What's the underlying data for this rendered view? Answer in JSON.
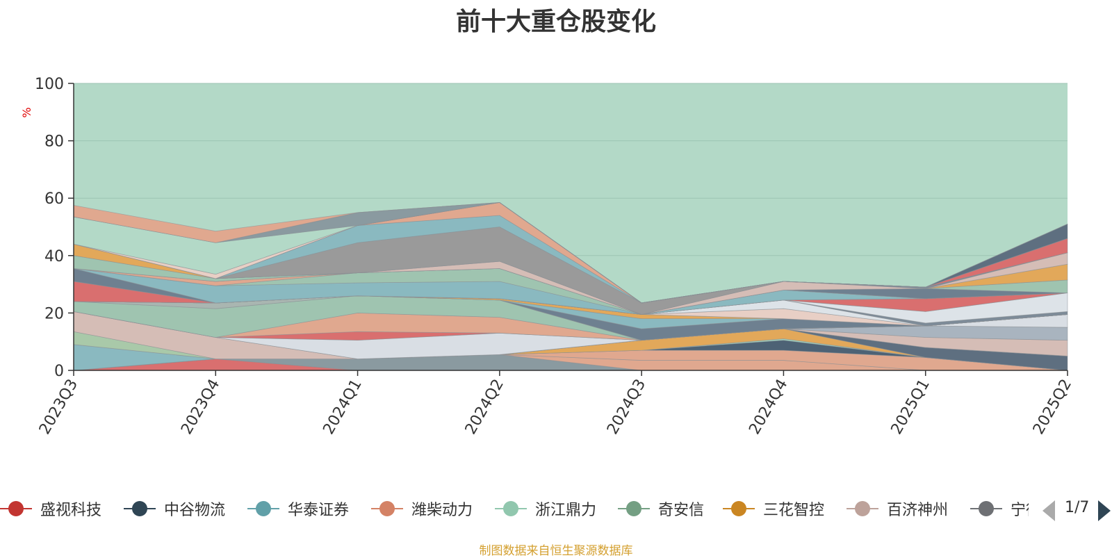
{
  "title": "前十大重仓股变化",
  "source": "制图数据来自恒生聚源数据库",
  "pager": {
    "text": "1/7"
  },
  "legend": [
    {
      "name": "盛视科技",
      "color": "#c23531"
    },
    {
      "name": "中谷物流",
      "color": "#2f4554"
    },
    {
      "name": "华泰证券",
      "color": "#61a0a8"
    },
    {
      "name": "潍柴动力",
      "color": "#d48265"
    },
    {
      "name": "浙江鼎力",
      "color": "#91c7ae"
    },
    {
      "name": "奇安信",
      "color": "#749f83"
    },
    {
      "name": "三花智控",
      "color": "#ca8622"
    },
    {
      "name": "百济神州",
      "color": "#bda29a"
    },
    {
      "name": "宁德",
      "color": "#6e7074"
    }
  ],
  "chart_data": {
    "type": "area",
    "stacked": true,
    "ylabel": "%",
    "ylim": [
      0,
      100
    ],
    "yticks": [
      0,
      20,
      40,
      60,
      80,
      100
    ],
    "categories": [
      "2023Q3",
      "2023Q4",
      "2024Q1",
      "2024Q2",
      "2024Q3",
      "2024Q4",
      "2025Q1",
      "2025Q2"
    ],
    "background_fill": {
      "color": "#b3d9c7"
    },
    "series": [
      {
        "color": "#d96f6f",
        "values": [
          0,
          4,
          0,
          0,
          0,
          0,
          0,
          0
        ]
      },
      {
        "color": "#8a9aa0",
        "values": [
          0,
          0,
          4,
          5.5,
          0,
          0,
          0,
          0
        ]
      },
      {
        "color": "#e0a88f",
        "values": [
          0,
          0,
          0,
          0,
          3.5,
          3.5,
          0,
          0
        ]
      },
      {
        "color": "#e0a88f",
        "values": [
          0,
          0,
          0,
          0,
          3.5,
          3.5,
          4.5,
          0
        ]
      },
      {
        "color": "#4d6275",
        "values": [
          0,
          0,
          0,
          0,
          0,
          3.5,
          0,
          0
        ]
      },
      {
        "color": "#9fd6c0",
        "values": [
          0,
          0,
          0,
          0,
          0,
          0.5,
          0,
          0
        ]
      },
      {
        "color": "#e2a85a",
        "values": [
          0,
          0,
          0,
          0,
          3.5,
          3.5,
          0,
          0
        ]
      },
      {
        "color": "#5e6f80",
        "values": [
          0,
          0,
          0,
          0,
          0,
          0,
          3.5,
          5
        ]
      },
      {
        "color": "#8ab9c0",
        "values": [
          9,
          0,
          0,
          0,
          0,
          0,
          0,
          0
        ]
      },
      {
        "color": "#a9c9a9",
        "values": [
          4.5,
          0,
          0,
          0,
          0,
          0,
          0,
          0
        ]
      },
      {
        "color": "#d5bdb6",
        "values": [
          7,
          7.5,
          0,
          0,
          0,
          0,
          3.5,
          5.5
        ]
      },
      {
        "color": "#a9b4bf",
        "values": [
          0,
          0,
          0,
          0,
          0,
          0,
          4,
          4.5
        ]
      },
      {
        "color": "#d9dee4",
        "values": [
          0,
          0,
          6.5,
          7.5,
          0,
          0,
          0,
          4.5
        ]
      },
      {
        "color": "#d96f6f",
        "values": [
          0,
          0,
          3,
          0,
          0,
          0,
          0,
          0
        ]
      },
      {
        "color": "#e0a88f",
        "values": [
          0,
          0,
          6.5,
          5.5,
          0,
          0,
          0,
          0
        ]
      },
      {
        "color": "#9fc4b0",
        "values": [
          3.5,
          10,
          6,
          6,
          0,
          0,
          0,
          0
        ]
      },
      {
        "color": "#a9b6b1",
        "values": [
          0,
          2,
          0,
          0,
          0,
          0,
          0,
          0
        ]
      },
      {
        "color": "#6e8090",
        "values": [
          0,
          0,
          0,
          0,
          4,
          3.5,
          0,
          0
        ]
      },
      {
        "color": "#8ab9c0",
        "values": [
          0,
          0,
          0,
          0,
          3.5,
          0,
          0,
          0
        ]
      },
      {
        "color": "#e2a85a",
        "values": [
          0,
          0,
          0,
          0.5,
          1.5,
          0,
          0,
          0
        ]
      },
      {
        "color": "#e8cfc5",
        "values": [
          0,
          0,
          0,
          0,
          0,
          3.5,
          0,
          0
        ]
      },
      {
        "color": "#dde3e8",
        "values": [
          0,
          0,
          0,
          0,
          0,
          3,
          0,
          0
        ]
      },
      {
        "color": "#7d8b98",
        "values": [
          0,
          0,
          0,
          0,
          0,
          0,
          1,
          1
        ]
      },
      {
        "color": "#dde3e8",
        "values": [
          0,
          0,
          0,
          0,
          0,
          0,
          4,
          6.5
        ]
      },
      {
        "color": "#d96f6f",
        "values": [
          0,
          0,
          0,
          0,
          0,
          0,
          4.5,
          0
        ]
      },
      {
        "color": "#d96f6f",
        "values": [
          7,
          0,
          0,
          0,
          0,
          0,
          0,
          0
        ]
      },
      {
        "color": "#6e8090",
        "values": [
          4.5,
          0,
          0,
          0,
          0,
          0,
          0,
          0
        ]
      },
      {
        "color": "#8ab9c0",
        "values": [
          0,
          6,
          4.5,
          6,
          0,
          3.5,
          0,
          0
        ]
      },
      {
        "color": "#9fc4b0",
        "values": [
          0,
          0,
          3.5,
          4.5,
          0,
          0,
          0,
          0
        ]
      },
      {
        "color": "#e0a88f",
        "values": [
          0,
          1.5,
          0,
          0,
          0,
          0,
          0,
          0
        ]
      },
      {
        "color": "#6e8090",
        "values": [
          0,
          0,
          0,
          0,
          0,
          0,
          3.5,
          0
        ]
      },
      {
        "color": "#9fc4b0",
        "values": [
          4.5,
          1,
          0,
          0,
          0,
          0,
          0,
          4.5
        ]
      },
      {
        "color": "#e2a85a",
        "values": [
          4,
          0,
          0,
          0,
          0,
          0,
          0,
          5.5
        ]
      },
      {
        "color": "#d5bdb6",
        "values": [
          0,
          0,
          0,
          2.5,
          0,
          3,
          0,
          4
        ]
      },
      {
        "color": "#7d8b98",
        "values": [
          0,
          0,
          0,
          0,
          0,
          0,
          0.5,
          0
        ]
      },
      {
        "color": "#9a9a9a",
        "values": [
          0,
          0,
          10.5,
          12,
          4,
          0,
          0,
          0
        ]
      },
      {
        "color": "#8ab9c0",
        "values": [
          0,
          0,
          6,
          4,
          0,
          0,
          0,
          0
        ]
      },
      {
        "color": "#e0a88f",
        "values": [
          0,
          0,
          0,
          4.5,
          0,
          0,
          0,
          0
        ]
      },
      {
        "color": "#d96f6f",
        "values": [
          0,
          0,
          0,
          0,
          0,
          0,
          0,
          5
        ]
      },
      {
        "color": "#e8cfc5",
        "values": [
          0,
          1.5,
          0,
          0,
          0,
          0,
          0,
          0
        ]
      },
      {
        "color": "#b3d9c7",
        "values": [
          9.5,
          11,
          0,
          0,
          0,
          0,
          0,
          0
        ]
      },
      {
        "color": "#8a9aa0",
        "values": [
          0,
          0,
          4.5,
          0,
          0,
          0,
          0,
          0
        ]
      },
      {
        "color": "#5e6f80",
        "values": [
          0,
          0,
          0,
          0,
          0,
          0,
          0,
          5
        ]
      },
      {
        "color": "#e0a88f",
        "values": [
          4,
          4,
          0,
          0,
          0,
          0,
          0,
          0
        ]
      }
    ]
  }
}
